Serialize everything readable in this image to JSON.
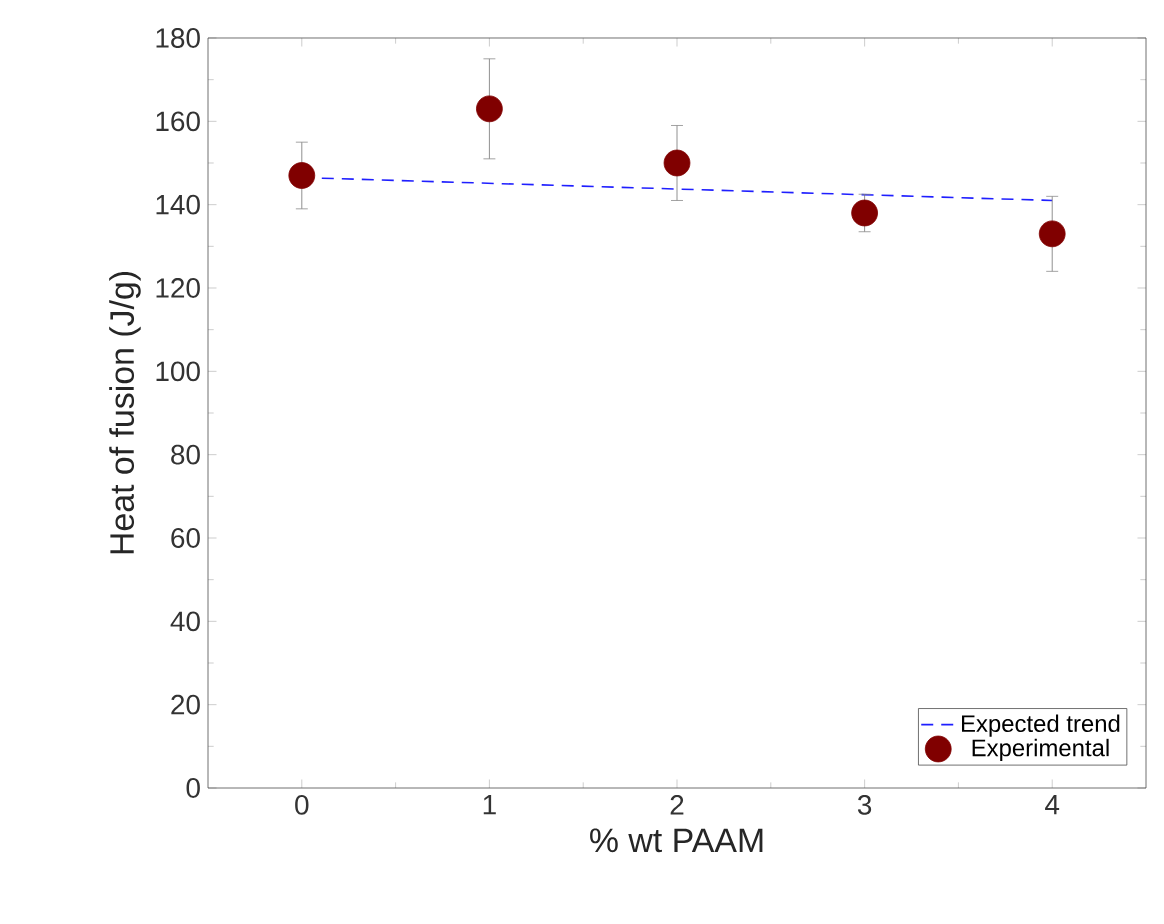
{
  "chart_data": {
    "type": "scatter",
    "xlabel": "% wt PAAM",
    "ylabel": "Heat of fusion (J/g)",
    "xlim": [
      -0.5,
      4.5
    ],
    "ylim": [
      0,
      180
    ],
    "xticks": [
      0,
      1,
      2,
      3,
      4
    ],
    "yticks": [
      0,
      20,
      40,
      60,
      80,
      100,
      120,
      140,
      160,
      180
    ],
    "legend": "bottom right",
    "grid": false,
    "series": [
      {
        "name": "Expected trend",
        "type": "line",
        "line_style": "dashed",
        "marker": "none",
        "color": "#1f1fff",
        "x": [
          0,
          4
        ],
        "values": [
          146.5,
          141
        ]
      },
      {
        "name": "Experimental",
        "marker": "circle",
        "color": "#800000",
        "x": [
          0,
          1,
          2,
          3,
          4
        ],
        "values": [
          147,
          163,
          150,
          138,
          133
        ],
        "errors": [
          8,
          12,
          9,
          4.5,
          9
        ]
      }
    ]
  }
}
